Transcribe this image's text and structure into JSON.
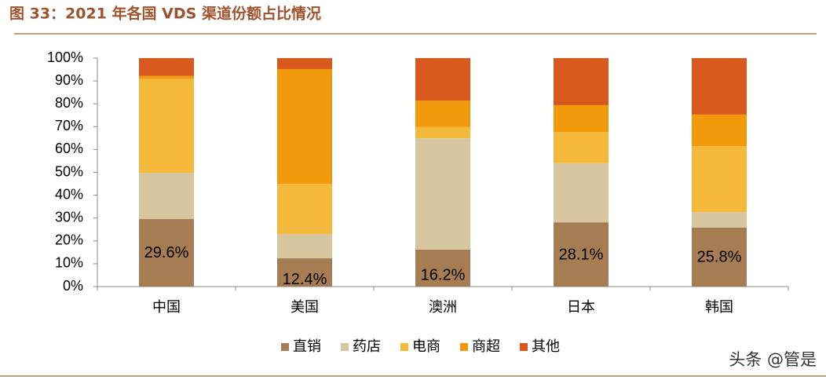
{
  "chart_data": {
    "type": "stacked-bar",
    "title": "图 33：2021 年各国 VDS 渠道份额占比情况",
    "categories": [
      "中国",
      "美国",
      "澳洲",
      "日本",
      "韩国"
    ],
    "series": [
      {
        "name": "直销",
        "color": "#a67c52",
        "values": [
          29.6,
          12.4,
          16.2,
          28.1,
          25.8
        ],
        "value_labels": [
          "29.6%",
          "12.4%",
          "16.2%",
          "28.1%",
          "25.8%"
        ]
      },
      {
        "name": "药店",
        "color": "#d6c69f",
        "values": [
          20.2,
          10.6,
          48.7,
          25.9,
          6.8
        ]
      },
      {
        "name": "电商",
        "color": "#f4b93b",
        "values": [
          41.0,
          22.0,
          4.9,
          13.7,
          28.9
        ]
      },
      {
        "name": "商超",
        "color": "#f39a0c",
        "values": [
          1.4,
          50.2,
          11.6,
          11.7,
          13.8
        ]
      },
      {
        "name": "其他",
        "color": "#d9581b",
        "values": [
          7.8,
          4.8,
          18.6,
          20.6,
          24.7
        ]
      }
    ],
    "ylim": [
      0,
      100
    ],
    "yticks": [
      {
        "value": 0,
        "label": "0%"
      },
      {
        "value": 10,
        "label": "10%"
      },
      {
        "value": 20,
        "label": "20%"
      },
      {
        "value": 30,
        "label": "30%"
      },
      {
        "value": 40,
        "label": "40%"
      },
      {
        "value": 50,
        "label": "50%"
      },
      {
        "value": 60,
        "label": "60%"
      },
      {
        "value": 70,
        "label": "70%"
      },
      {
        "value": 80,
        "label": "80%"
      },
      {
        "value": 90,
        "label": "90%"
      },
      {
        "value": 100,
        "label": "100%"
      }
    ],
    "legend": "bottom",
    "watermark": "头条 @管是"
  }
}
